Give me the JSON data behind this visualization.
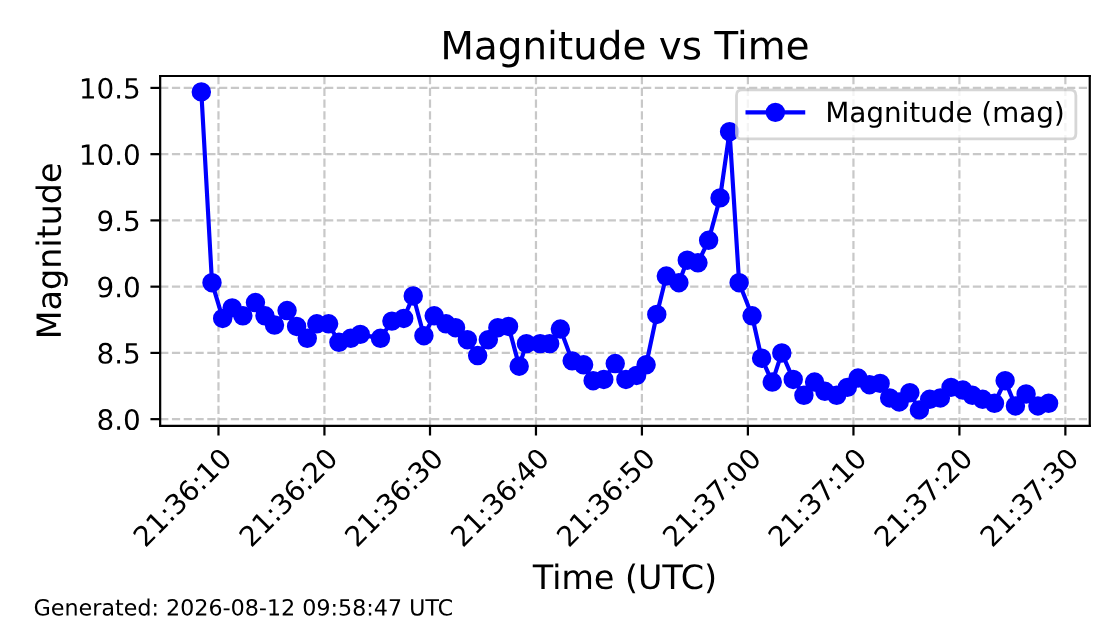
{
  "chart_data": {
    "type": "line",
    "title": "Magnitude vs Time",
    "xlabel": "Time (UTC)",
    "ylabel": "Magnitude",
    "annotations": [
      "Generated: 2026-08-12 09:58:47 UTC"
    ],
    "series": [
      {
        "name": "Magnitude (mag)",
        "color": "#0000ff",
        "x": [
          21.60233,
          21.60261,
          21.60289,
          21.60314,
          21.60342,
          21.60375,
          21.604,
          21.60425,
          21.60458,
          21.60483,
          21.60511,
          21.60536,
          21.60567,
          21.60594,
          21.60625,
          21.6065,
          21.60703,
          21.60733,
          21.60764,
          21.60789,
          21.60817,
          21.60844,
          21.60875,
          21.609,
          21.60931,
          21.60958,
          21.60986,
          21.61011,
          21.61039,
          21.61067,
          21.61086,
          21.61122,
          21.61147,
          21.61175,
          21.61206,
          21.61236,
          21.61261,
          21.61289,
          21.61319,
          21.61347,
          21.61375,
          21.614,
          21.61428,
          21.61453,
          21.61486,
          21.61508,
          21.61536,
          21.61564,
          21.61594,
          21.61619,
          21.61644,
          21.61678,
          21.61703,
          21.61731,
          21.61756,
          21.61786,
          21.61814,
          21.61842,
          21.61869,
          21.619,
          21.61928,
          21.61956,
          21.61986,
          21.62014,
          21.62039,
          21.62064,
          21.62092,
          21.62117,
          21.62144,
          21.62172,
          21.622,
          21.62231,
          21.62256,
          21.62283,
          21.62314,
          21.62342,
          21.62369,
          21.62397,
          21.62428,
          21.62456
        ],
        "values": [
          10.47,
          9.03,
          8.76,
          8.84,
          8.78,
          8.88,
          8.78,
          8.71,
          8.82,
          8.7,
          8.61,
          8.72,
          8.72,
          8.58,
          8.61,
          8.64,
          8.61,
          8.74,
          8.76,
          8.93,
          8.63,
          8.78,
          8.72,
          8.69,
          8.6,
          8.48,
          8.6,
          8.69,
          8.7,
          8.4,
          8.57,
          8.57,
          8.57,
          8.68,
          8.44,
          8.41,
          8.29,
          8.3,
          8.42,
          8.3,
          8.33,
          8.41,
          8.79,
          9.08,
          9.03,
          9.2,
          9.18,
          9.35,
          9.67,
          10.17,
          9.03,
          8.78,
          8.46,
          8.28,
          8.5,
          8.3,
          8.18,
          8.28,
          8.21,
          8.18,
          8.24,
          8.31,
          8.26,
          8.27,
          8.16,
          8.13,
          8.2,
          8.07,
          8.15,
          8.16,
          8.24,
          8.22,
          8.18,
          8.15,
          8.12,
          8.29,
          8.1,
          8.19,
          8.1,
          8.12
        ]
      }
    ],
    "xlim": [
      21.60125,
      21.62564
    ],
    "xticks": [
      {
        "value": 21.60278,
        "label": "21:36:10"
      },
      {
        "value": 21.60556,
        "label": "21:36:20"
      },
      {
        "value": 21.60833,
        "label": "21:36:30"
      },
      {
        "value": 21.61111,
        "label": "21:36:40"
      },
      {
        "value": 21.61389,
        "label": "21:36:50"
      },
      {
        "value": 21.61667,
        "label": "21:37:00"
      },
      {
        "value": 21.61944,
        "label": "21:37:10"
      },
      {
        "value": 21.62222,
        "label": "21:37:20"
      },
      {
        "value": 21.625,
        "label": "21:37:30"
      }
    ],
    "ylim": [
      7.95,
      10.59
    ],
    "yticks": [
      {
        "value": 8,
        "label": "8.0"
      },
      {
        "value": 8.5,
        "label": "8.5"
      },
      {
        "value": 9,
        "label": "9.0"
      },
      {
        "value": 9.5,
        "label": "9.5"
      },
      {
        "value": 10,
        "label": "10.0"
      },
      {
        "value": 10.5,
        "label": "10.5"
      }
    ],
    "grid": true,
    "legend": "top right",
    "marker": "circle",
    "line_style": "solid"
  }
}
